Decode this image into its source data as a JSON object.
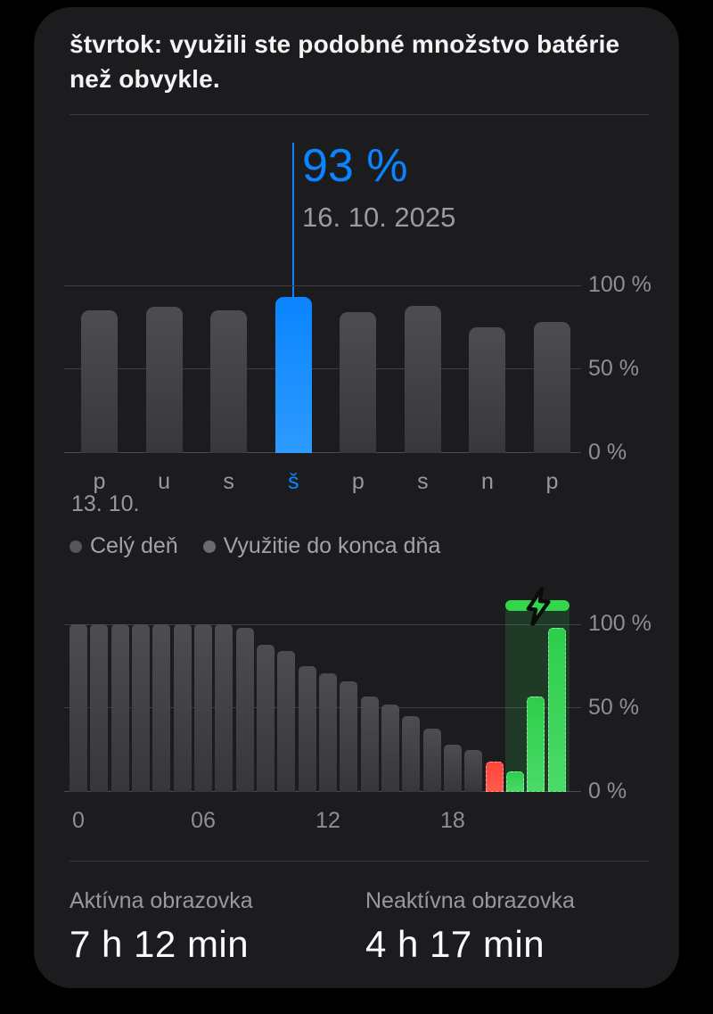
{
  "header": {
    "summary": "štvrtok: využili ste podobné množstvo batérie než obvykle."
  },
  "selection": {
    "percent": "93 %",
    "date": "16. 10. 2025"
  },
  "legend": {
    "items": [
      {
        "label": "Celý deň"
      },
      {
        "label": "Využitie do konca dňa"
      }
    ]
  },
  "stats": {
    "active": {
      "label": "Aktívna obrazovka",
      "value": "7 h 12 min"
    },
    "inactive": {
      "label": "Neaktívna obrazovka",
      "value": "4 h 17 min"
    }
  },
  "colors": {
    "card_bg": "#1c1c1e",
    "accent_blue": "#0a84ff",
    "bar_gray": "#47474b",
    "bar_red": "#ff453a",
    "bar_green": "#30d158",
    "charge_cap_green": "#32d74b",
    "text_primary": "#f4f4f6",
    "text_secondary": "#98989d"
  },
  "chart_data": [
    {
      "type": "bar",
      "title": "",
      "categories": [
        "p",
        "u",
        "s",
        "š",
        "p",
        "s",
        "n",
        "p"
      ],
      "values": [
        85,
        87,
        85,
        93,
        84,
        88,
        75,
        78
      ],
      "unit": "%",
      "ylim": [
        0,
        100
      ],
      "y_ticks": [
        "100 %",
        "50 %",
        "0 %"
      ],
      "grid": true,
      "selected_index": 3,
      "selected_value": 93,
      "selected_value_label": "93 %",
      "selected_date_label": "16. 10. 2025",
      "x_start_label": "13. 10.",
      "legend_position": "below"
    },
    {
      "type": "bar",
      "title": "",
      "x": [
        0,
        1,
        2,
        3,
        4,
        5,
        6,
        7,
        8,
        9,
        10,
        11,
        12,
        13,
        14,
        15,
        16,
        17,
        18,
        19,
        20,
        21,
        22,
        23
      ],
      "values": [
        100,
        100,
        100,
        100,
        100,
        100,
        100,
        100,
        98,
        88,
        84,
        75,
        71,
        66,
        57,
        52,
        45,
        38,
        28,
        25,
        18,
        12,
        57,
        98
      ],
      "bar_styles": [
        "gray",
        "gray",
        "gray",
        "gray",
        "gray",
        "gray",
        "gray",
        "gray",
        "gray",
        "gray",
        "gray",
        "gray",
        "gray",
        "gray",
        "gray",
        "gray",
        "gray",
        "gray",
        "gray",
        "gray",
        "red",
        "green",
        "green",
        "green"
      ],
      "unit": "%",
      "ylim": [
        0,
        100
      ],
      "y_ticks": [
        "100 %",
        "50 %",
        "0 %"
      ],
      "x_ticks": [
        {
          "at": 0,
          "label": "0"
        },
        {
          "at": 6,
          "label": "06"
        },
        {
          "at": 12,
          "label": "12"
        },
        {
          "at": 18,
          "label": "18"
        }
      ],
      "grid": true,
      "charging_overlay": {
        "from_index": 21,
        "to_index": 23,
        "icon": "charging-bolt-icon"
      }
    }
  ]
}
